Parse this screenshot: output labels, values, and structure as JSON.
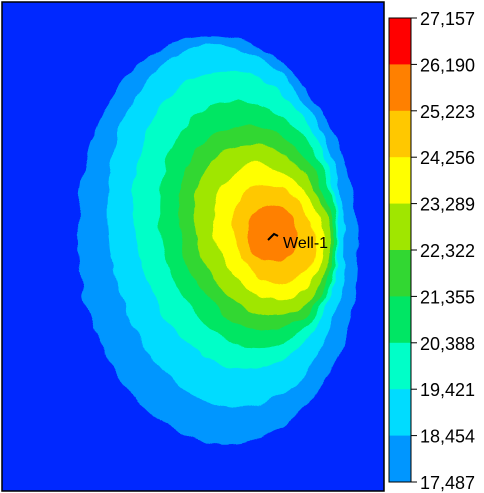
{
  "chart_data": {
    "type": "heatmap",
    "title": "",
    "xlabel": "",
    "ylabel": "",
    "colorbar": {
      "ticks": [
        "27,157",
        "26,190",
        "25,223",
        "24,256",
        "23,289",
        "22,322",
        "21,355",
        "20,388",
        "19,421",
        "18,454",
        "17,487"
      ],
      "min": 17487,
      "max": 27157,
      "colors": [
        "#ff0000",
        "#ff8000",
        "#ffc800",
        "#ffff00",
        "#a0e600",
        "#32d732",
        "#00e664",
        "#00ffc8",
        "#00dcff",
        "#0096ff",
        "#0028ff"
      ]
    },
    "background_color": "#0028ff",
    "well": {
      "label": "Well-1",
      "color": "#000000"
    },
    "contour_levels": [
      {
        "value": 18454
      },
      {
        "value": 19421
      },
      {
        "value": 20388
      },
      {
        "value": 21355
      },
      {
        "value": 22322
      },
      {
        "value": 23289
      },
      {
        "value": 24256
      },
      {
        "value": 25223
      },
      {
        "value": 26190
      }
    ]
  }
}
